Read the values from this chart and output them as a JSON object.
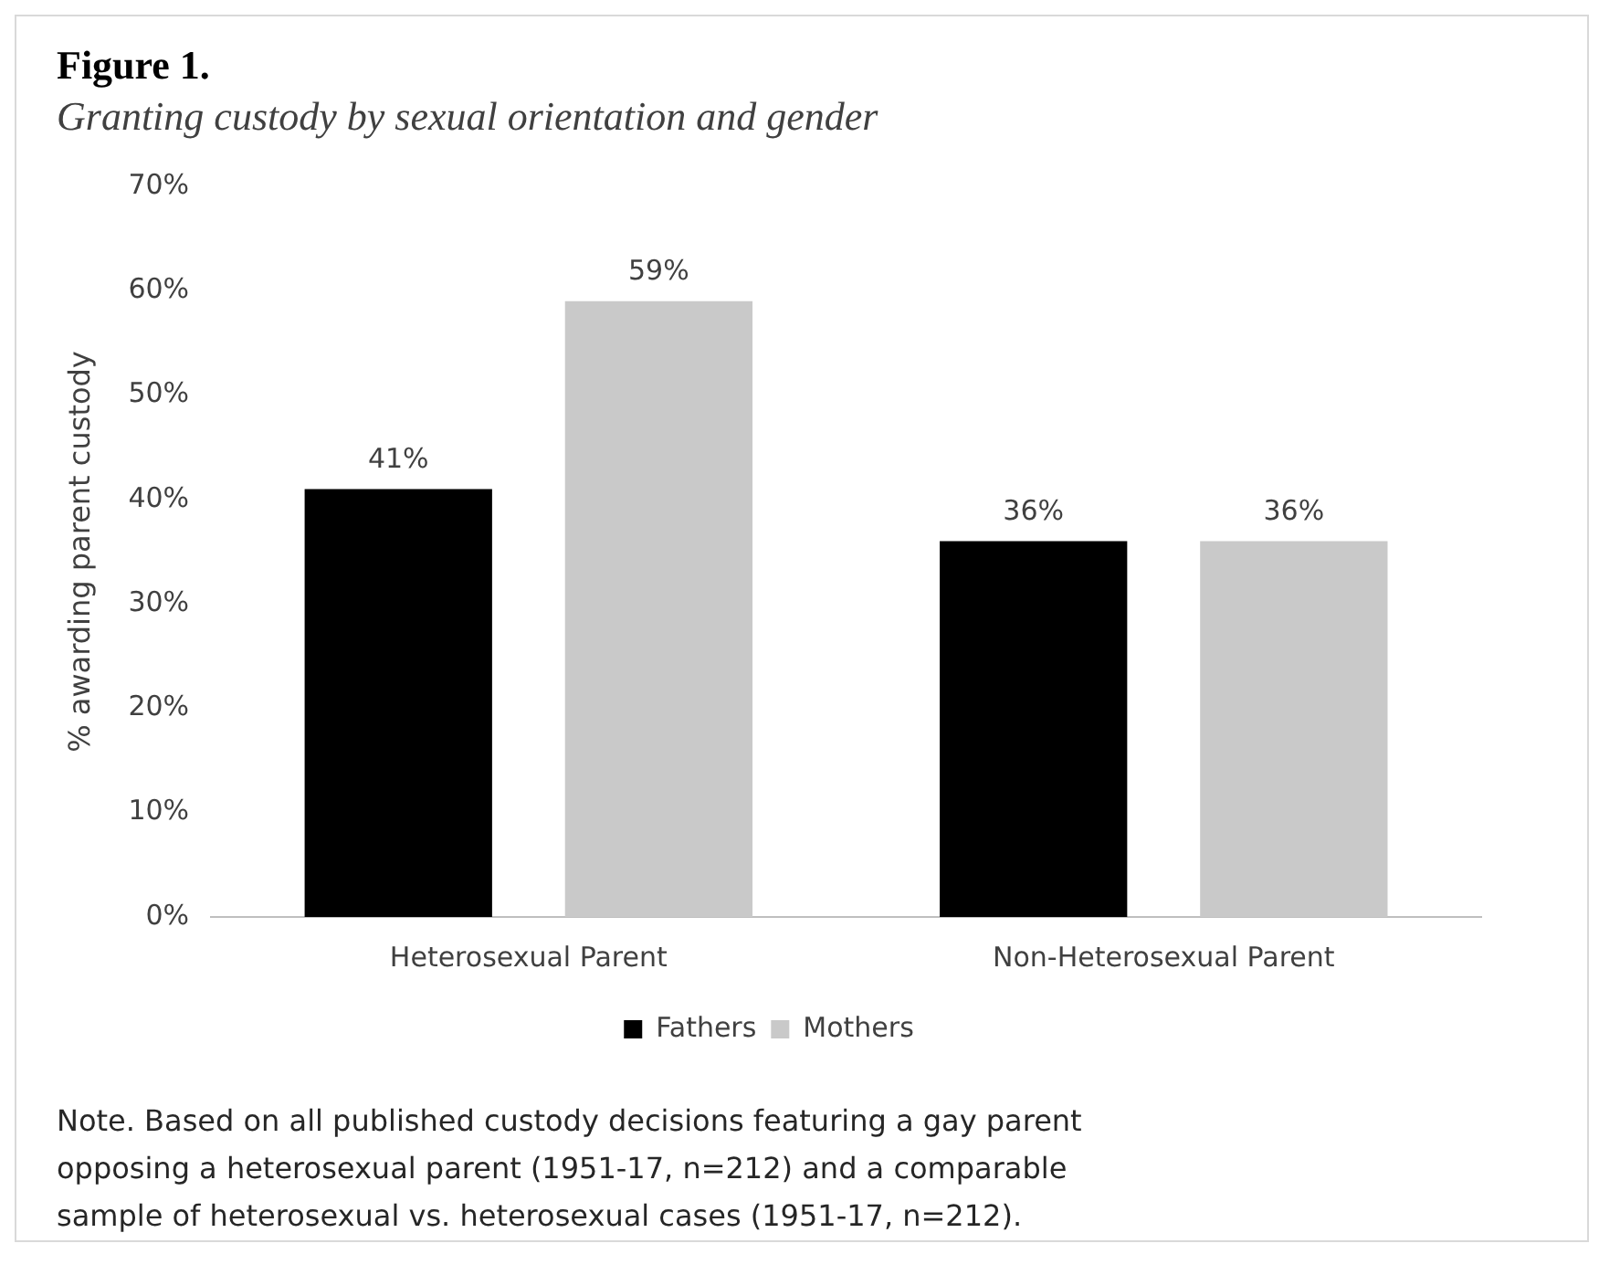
{
  "chart_data": {
    "type": "bar",
    "title": "Figure 1.",
    "subtitle": "Granting custody by sexual orientation and gender",
    "ylabel": "% awarding parent custody",
    "categories": [
      "Heterosexual Parent",
      "Non-Heterosexual Parent"
    ],
    "series": [
      {
        "name": "Fathers",
        "color": "#000000",
        "values": [
          41,
          36
        ],
        "value_labels": [
          "41%",
          "36%"
        ]
      },
      {
        "name": "Mothers",
        "color": "#c9c9c9",
        "values": [
          59,
          36
        ],
        "value_labels": [
          "59%",
          "36%"
        ]
      }
    ],
    "ylim": [
      0,
      70
    ],
    "yticks": [
      {
        "value": 0,
        "label": "0%"
      },
      {
        "value": 10,
        "label": "10%"
      },
      {
        "value": 20,
        "label": "20%"
      },
      {
        "value": 30,
        "label": "30%"
      },
      {
        "value": 40,
        "label": "40%"
      },
      {
        "value": 50,
        "label": "50%"
      },
      {
        "value": 60,
        "label": "60%"
      },
      {
        "value": 70,
        "label": "70%"
      }
    ],
    "legend": "bottom",
    "annotations": [
      "Note. Based on all published custody decisions featuring a gay parent opposing a heterosexual parent (1951-17, n=212) and a comparable sample of heterosexual vs. heterosexual cases (1951-17, n=212)."
    ]
  }
}
